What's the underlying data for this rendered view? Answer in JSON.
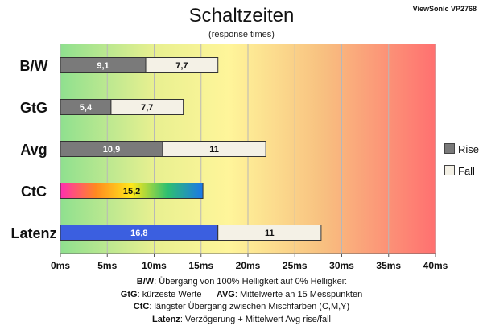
{
  "brand": "ViewSonic VP2768",
  "chart_data": {
    "type": "bar",
    "orientation": "horizontal",
    "stacked": true,
    "title": "Schaltzeiten",
    "subtitle": "(response times)",
    "categories": [
      "B/W",
      "GtG",
      "Avg",
      "CtC",
      "Latenz"
    ],
    "series": [
      {
        "name": "Rise",
        "values": [
          9.1,
          5.4,
          10.9,
          15.2,
          16.8
        ],
        "labels": [
          "9,1",
          "5,4",
          "10,9",
          "15,2",
          "16,8"
        ]
      },
      {
        "name": "Fall",
        "values": [
          7.7,
          7.7,
          11,
          null,
          11
        ],
        "labels": [
          "7,7",
          "7,7",
          "11",
          "",
          "11"
        ]
      }
    ],
    "xlim": [
      0,
      40
    ],
    "xticks": [
      "0ms",
      "5ms",
      "10ms",
      "15ms",
      "20ms",
      "25ms",
      "30ms",
      "35ms",
      "40ms"
    ],
    "grid": true,
    "legend_position": "right",
    "background": "gradient green-yellow-red"
  },
  "notes": {
    "line1_key": "B/W",
    "line1_text": ":  Übergang von 100% Helligkeit auf 0% Helligkeit",
    "line2_key_a": "GtG",
    "line2_text_a": ": kürzeste  Werte",
    "line2_key_b": "AVG",
    "line2_text_b": ": Mittelwerte  an 15 Messpunkten",
    "line3_key": "CtC",
    "line3_text": ": längster Übergang  zwischen Mischfarben  (C,M,Y)",
    "line4_key": "Latenz",
    "line4_text": ": Verzögerung  + Mittelwert  Avg rise/fall"
  },
  "colors": {
    "rise": "#7a7a7a",
    "fall": "#f4f1e6",
    "latenz_rise": "#3b5fe0",
    "grid": "#b8b8b8"
  }
}
